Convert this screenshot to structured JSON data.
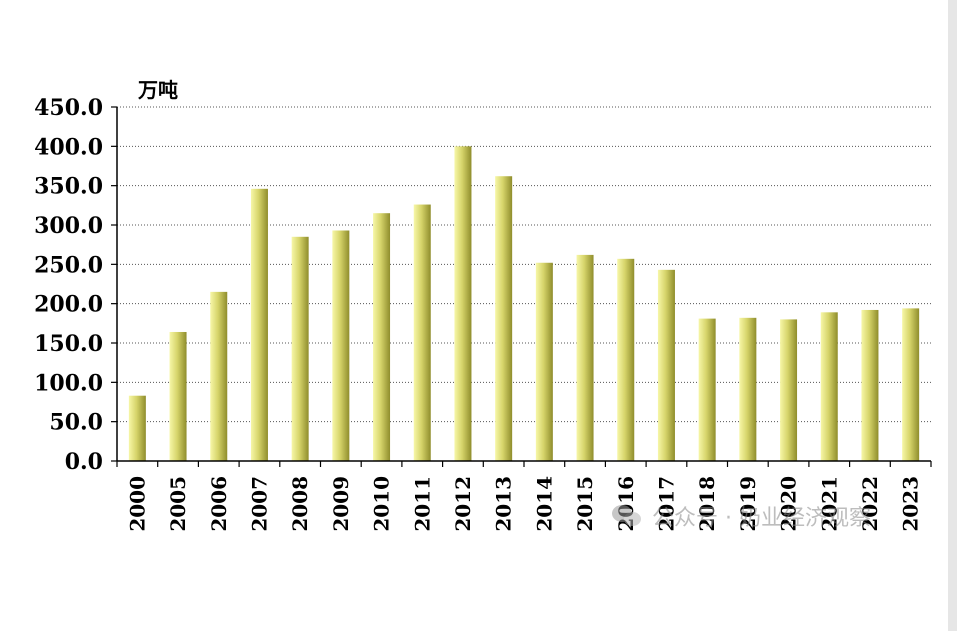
{
  "unit_label": "万吨",
  "watermark": {
    "text": "公众号 · 奶业经济观察",
    "icon": "wechat-icon"
  },
  "colors": {
    "bar_light": "#f7f7a8",
    "bar_mid": "#d6d46a",
    "bar_dark": "#8f8d2c",
    "grid": "#555555",
    "axis": "#000000"
  },
  "chart_data": {
    "type": "bar",
    "title": "",
    "xlabel": "",
    "ylabel": "万吨",
    "ylim": [
      0,
      450
    ],
    "yticks": [
      0,
      50,
      100,
      150,
      200,
      250,
      300,
      350,
      400,
      450
    ],
    "ytick_labels": [
      "0.0",
      "50.0",
      "100.0",
      "150.0",
      "200.0",
      "250.0",
      "300.0",
      "350.0",
      "400.0",
      "450.0"
    ],
    "grid": "horizontal dotted",
    "legend": "none",
    "categories": [
      "2000",
      "2005",
      "2006",
      "2007",
      "2008",
      "2009",
      "2010",
      "2011",
      "2012",
      "2013",
      "2014",
      "2015",
      "2016",
      "2017",
      "2018",
      "2019",
      "2020",
      "2021",
      "2022",
      "2023"
    ],
    "values": [
      83,
      164,
      215,
      346,
      285,
      293,
      315,
      326,
      400,
      362,
      252,
      262,
      257,
      243,
      181,
      182,
      180,
      189,
      192,
      194
    ]
  }
}
